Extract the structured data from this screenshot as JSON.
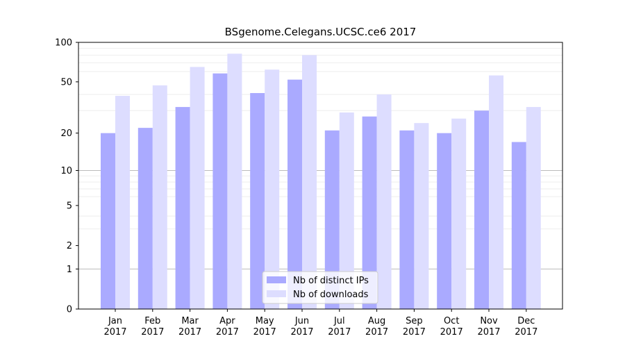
{
  "chart_data": {
    "type": "bar",
    "title": "BSgenome.Celegans.UCSC.ce6 2017",
    "xlabel": "",
    "ylabel": "",
    "yscale": "log(1+y)",
    "ylim": [
      0,
      100
    ],
    "yticks": [
      0,
      1,
      2,
      5,
      10,
      20,
      50,
      100
    ],
    "categories": [
      "Jan\n2017",
      "Feb\n2017",
      "Mar\n2017",
      "Apr\n2017",
      "May\n2017",
      "Jun\n2017",
      "Jul\n2017",
      "Aug\n2017",
      "Sep\n2017",
      "Oct\n2017",
      "Nov\n2017",
      "Dec\n2017"
    ],
    "series": [
      {
        "name": "Nb of distinct IPs",
        "color": "#aaaaff",
        "values": [
          20,
          22,
          32,
          58,
          41,
          52,
          21,
          27,
          21,
          20,
          30,
          17
        ]
      },
      {
        "name": "Nb of downloads",
        "color": "#ddddff",
        "values": [
          39,
          47,
          65,
          82,
          62,
          80,
          29,
          40,
          24,
          26,
          56,
          32
        ]
      }
    ],
    "legend_position": "lower-center",
    "grid": true
  }
}
